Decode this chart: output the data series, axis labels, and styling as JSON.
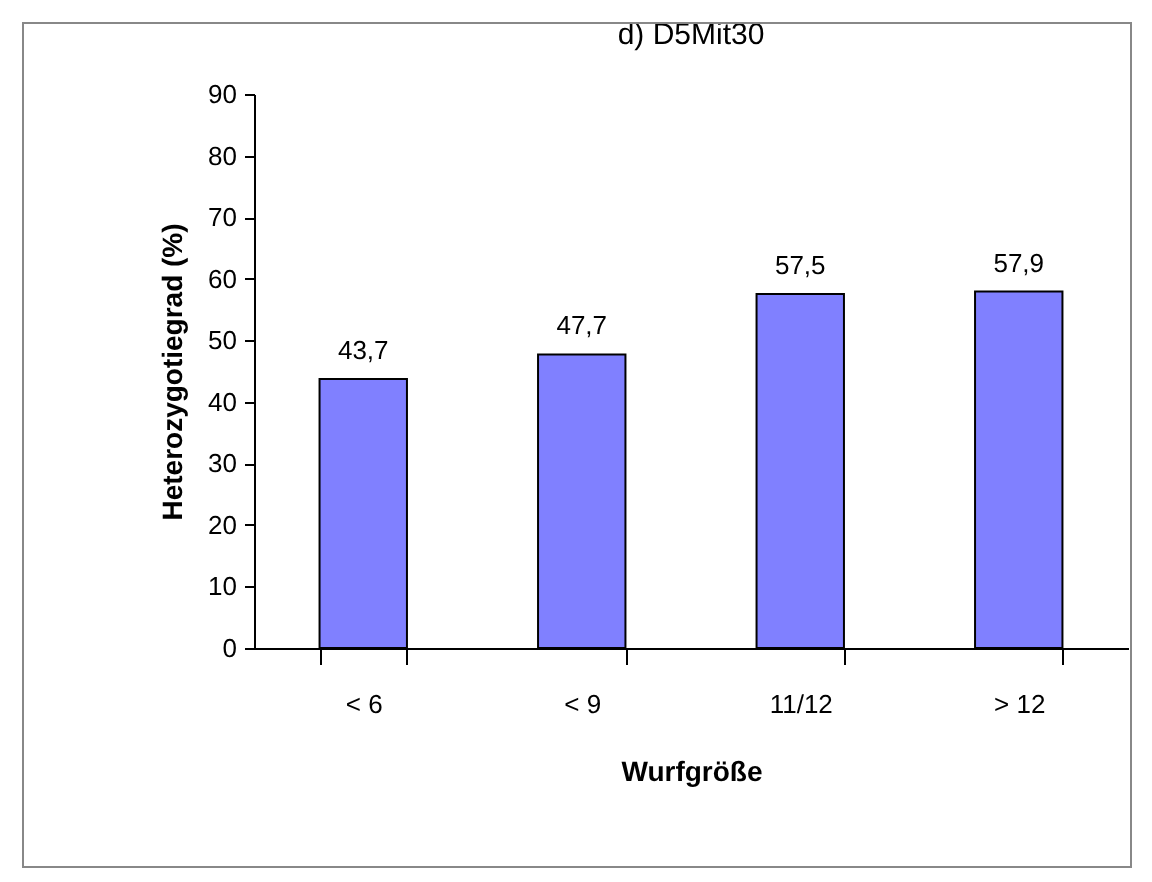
{
  "chart_data": {
    "type": "bar",
    "title": "d) D5Mit30",
    "xlabel": "Wurfgröße",
    "ylabel": "Heterozygotiegrad (%)",
    "categories": [
      "< 6",
      "< 9",
      "11/12",
      "> 12"
    ],
    "values": [
      43.7,
      47.7,
      57.5,
      57.9
    ],
    "value_labels": [
      "43,7",
      "47,7",
      "57,5",
      "57,9"
    ],
    "color": "#8080ff",
    "ylim": [
      0,
      90
    ],
    "yticks": [
      0,
      10,
      20,
      30,
      40,
      50,
      60,
      70,
      80,
      90
    ],
    "grid": false
  }
}
